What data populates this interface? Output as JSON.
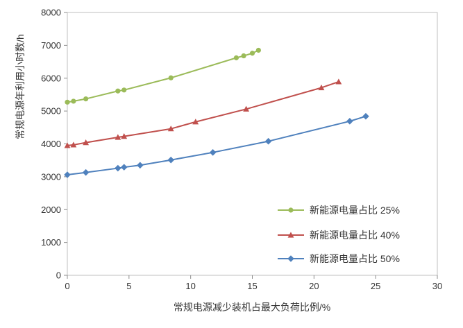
{
  "chart_data": {
    "type": "line",
    "title": "",
    "xlabel": "常规电源减少装机占最大负荷比例/%",
    "ylabel": "常规电源年利用小时数/h",
    "xlim": [
      0,
      30
    ],
    "ylim": [
      0,
      8000
    ],
    "x_ticks": [
      0,
      5,
      10,
      15,
      20,
      25,
      30
    ],
    "y_ticks": [
      0,
      1000,
      2000,
      3000,
      4000,
      5000,
      6000,
      7000,
      8000
    ],
    "grid": false,
    "legend_position": "inside-bottom-right",
    "series": [
      {
        "name": "新能源电量占比 25%",
        "color": "#9BBB59",
        "marker": "circle",
        "x": [
          0,
          0.5,
          1.5,
          4.1,
          4.6,
          8.4,
          13.7,
          14.3,
          15.0,
          15.5
        ],
        "y": [
          5270,
          5300,
          5370,
          5610,
          5640,
          6010,
          6620,
          6680,
          6760,
          6850
        ]
      },
      {
        "name": "新能源电量占比 40%",
        "color": "#C0504D",
        "marker": "triangle",
        "x": [
          0,
          0.5,
          1.5,
          4.1,
          4.6,
          8.4,
          10.4,
          14.5,
          20.6,
          22.0
        ],
        "y": [
          3950,
          3970,
          4040,
          4200,
          4230,
          4460,
          4670,
          5060,
          5710,
          5890
        ]
      },
      {
        "name": "新能源电量占比 50%",
        "color": "#4F81BD",
        "marker": "diamond",
        "x": [
          0,
          1.5,
          4.1,
          4.6,
          5.9,
          8.4,
          11.8,
          16.3,
          22.9,
          24.2
        ],
        "y": [
          3060,
          3130,
          3260,
          3290,
          3350,
          3510,
          3740,
          4080,
          4690,
          4840
        ]
      }
    ]
  },
  "style": {
    "axis_color": "#8C8C8C",
    "border_color": "#BFBFBF",
    "text_color": "#333333",
    "background": "#FFFFFF"
  }
}
